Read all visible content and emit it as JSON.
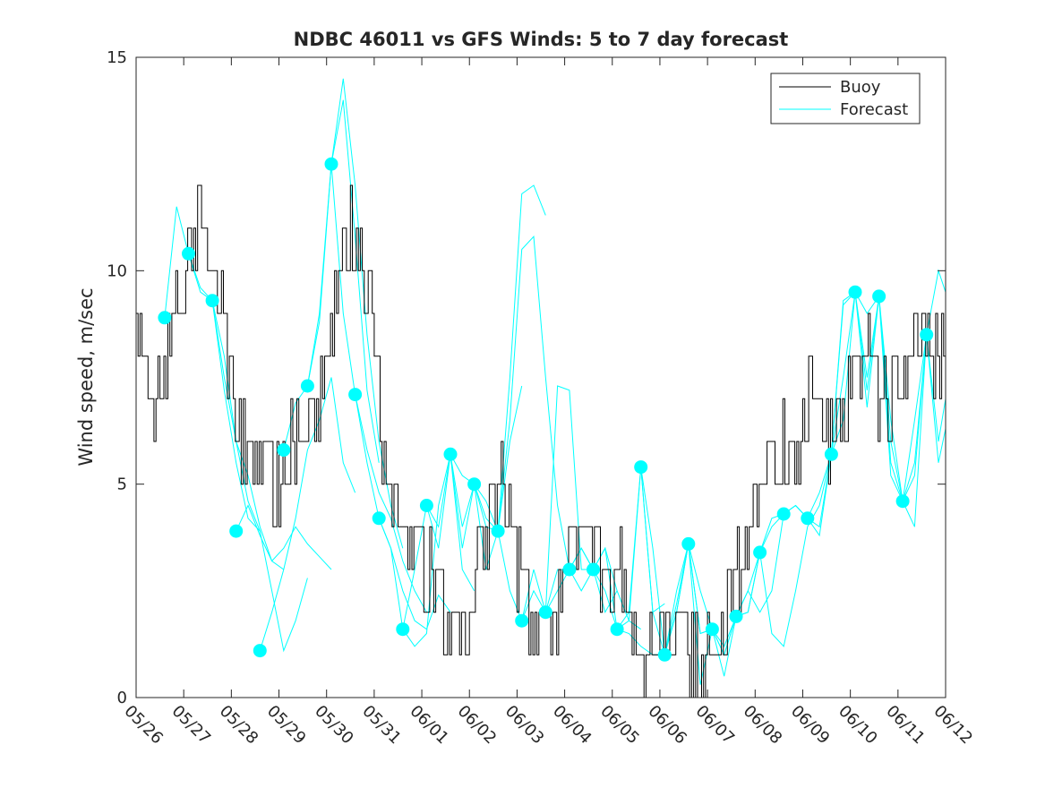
{
  "chart_data": {
    "type": "line",
    "title": "NDBC 46011 vs GFS Winds: 5 to 7 day forecast",
    "xlabel": "",
    "ylabel": "Wind speed, m/sec",
    "x_ticks": [
      "05/26",
      "05/27",
      "05/28",
      "05/29",
      "05/30",
      "05/31",
      "06/01",
      "06/02",
      "06/03",
      "06/04",
      "06/05",
      "06/06",
      "06/07",
      "06/08",
      "06/09",
      "06/10",
      "06/11",
      "06/12"
    ],
    "xlim": [
      0,
      17
    ],
    "ylim": [
      0,
      15
    ],
    "y_ticks": [
      0,
      5,
      10,
      15
    ],
    "grid": false,
    "legend": {
      "placement": "top-right",
      "entries": [
        {
          "name": "Buoy",
          "color": "#000000"
        },
        {
          "name": "Forecast",
          "color": "#00FFFF"
        }
      ]
    },
    "colors": {
      "buoy": "#000000",
      "forecast": "#00FFFF",
      "markers": "#00FFFF"
    },
    "buoy": {
      "name": "Buoy",
      "x": [
        0.0,
        0.25,
        0.5,
        0.75,
        1.0,
        1.25,
        1.5,
        1.75,
        2.0,
        2.25,
        2.5,
        2.75,
        3.0,
        3.25,
        3.5,
        3.75,
        4.0,
        4.25,
        4.5,
        4.75,
        5.0,
        5.25,
        5.5,
        5.75,
        6.0,
        6.25,
        6.5,
        6.75,
        7.0,
        7.25,
        7.5,
        7.75,
        8.0,
        8.25,
        8.5,
        8.75,
        9.0,
        9.25,
        9.5,
        9.75,
        10.0,
        10.25,
        10.5,
        10.75,
        11.0,
        11.25,
        11.5,
        11.75,
        12.0,
        12.25,
        12.5,
        12.75,
        13.0,
        13.25,
        13.5,
        13.75,
        14.0,
        14.25,
        14.5,
        14.75,
        15.0,
        15.25,
        15.5,
        15.75,
        16.0,
        16.25,
        16.5,
        16.75,
        17.0
      ],
      "values": [
        9,
        7,
        6.5,
        9,
        10,
        11,
        10.5,
        9.5,
        7,
        6,
        5,
        5.5,
        5,
        6,
        6.5,
        6.5,
        8,
        10,
        11,
        10,
        9,
        5,
        4,
        4,
        3,
        3,
        1.5,
        1.5,
        2,
        3.5,
        5,
        5,
        3,
        2,
        1.5,
        1.5,
        3,
        4,
        4,
        3,
        3,
        2.5,
        1.5,
        1,
        1.5,
        2,
        1,
        1,
        1,
        2,
        2.5,
        3,
        4.5,
        5.5,
        5.5,
        6,
        6.5,
        7,
        6,
        6.5,
        7.5,
        8,
        7.5,
        7,
        7.5,
        8,
        8.5,
        8,
        8
      ]
    },
    "buoy_spread": 1.0,
    "forecasts": [
      {
        "x": [
          0.6,
          0.85,
          1.1,
          1.35,
          1.6,
          1.85,
          2.1,
          2.35,
          2.6
        ],
        "values": [
          8.9,
          11.5,
          10.4,
          9.6,
          9.3,
          7.2,
          5.5,
          4.2,
          3.9
        ]
      },
      {
        "x": [
          1.1,
          1.35,
          1.6,
          1.85,
          2.1,
          2.35,
          2.6,
          2.85,
          3.1
        ],
        "values": [
          10.4,
          9.5,
          9.3,
          8.0,
          6.0,
          5.2,
          4.0,
          3.2,
          3.0
        ]
      },
      {
        "x": [
          1.6,
          1.85,
          2.1,
          2.35,
          2.6,
          2.85,
          3.1,
          3.35,
          3.6
        ],
        "values": [
          9.3,
          7.5,
          6.0,
          4.6,
          3.9,
          2.5,
          1.1,
          1.8,
          2.8
        ]
      },
      {
        "x": [
          2.1,
          2.35,
          2.6,
          2.85,
          3.1,
          3.35,
          3.6,
          3.85,
          4.1
        ],
        "values": [
          3.9,
          4.5,
          3.8,
          3.2,
          3.5,
          4.0,
          3.6,
          3.3,
          3.0
        ]
      },
      {
        "x": [
          2.6,
          2.85,
          3.1,
          3.35,
          3.6,
          3.85,
          4.1,
          4.35,
          4.6
        ],
        "values": [
          1.1,
          2.0,
          3.0,
          4.2,
          5.8,
          6.5,
          7.5,
          5.5,
          4.8
        ]
      },
      {
        "x": [
          3.1,
          3.35,
          3.6,
          3.85,
          4.1,
          4.35,
          4.6,
          4.85,
          5.1
        ],
        "values": [
          5.8,
          6.9,
          7.3,
          9.0,
          12.5,
          14.0,
          10.8,
          7.2,
          5.5
        ]
      },
      {
        "x": [
          3.6,
          3.85,
          4.1,
          4.35,
          4.6,
          4.85,
          5.1,
          5.35,
          5.6
        ],
        "values": [
          7.3,
          8.8,
          12.5,
          14.5,
          12.0,
          8.5,
          6.0,
          4.5,
          3.5
        ]
      },
      {
        "x": [
          4.1,
          4.35,
          4.6,
          4.85,
          5.1,
          5.35,
          5.6,
          5.85,
          6.1
        ],
        "values": [
          12.5,
          9.0,
          7.1,
          5.8,
          4.8,
          4.2,
          3.2,
          2.5,
          2.0
        ]
      },
      {
        "x": [
          4.6,
          4.85,
          5.1,
          5.35,
          5.6,
          5.85,
          6.1,
          6.35,
          6.6
        ],
        "values": [
          7.1,
          5.5,
          4.2,
          3.5,
          2.5,
          1.8,
          1.6,
          2.4,
          2.0
        ]
      },
      {
        "x": [
          5.1,
          5.35,
          5.6,
          5.85,
          6.1,
          6.35,
          6.6,
          6.85,
          7.1
        ],
        "values": [
          4.2,
          3.5,
          1.6,
          1.2,
          1.5,
          4.5,
          5.7,
          3.0,
          2.5
        ]
      },
      {
        "x": [
          5.6,
          5.85,
          6.1,
          6.35,
          6.6,
          6.85,
          7.1,
          7.35,
          7.6
        ],
        "values": [
          1.6,
          3.0,
          4.5,
          4.0,
          5.7,
          5.2,
          5.0,
          4.0,
          3.9
        ]
      },
      {
        "x": [
          6.1,
          6.35,
          6.6,
          6.85,
          7.1,
          7.35,
          7.6,
          7.85,
          8.1
        ],
        "values": [
          4.5,
          3.5,
          5.7,
          3.5,
          5.0,
          4.2,
          3.9,
          6.0,
          7.3
        ]
      },
      {
        "x": [
          6.6,
          6.85,
          7.1,
          7.35,
          7.6,
          7.85,
          8.1,
          8.35,
          8.6
        ],
        "values": [
          5.7,
          4.0,
          5.0,
          4.6,
          3.9,
          7.5,
          11.8,
          12.0,
          11.3
        ]
      },
      {
        "x": [
          7.1,
          7.35,
          7.6,
          7.85,
          8.1,
          8.35,
          8.6,
          8.85,
          9.1
        ],
        "values": [
          5.0,
          3.0,
          3.9,
          6.5,
          10.5,
          10.8,
          7.5,
          4.5,
          3.0
        ]
      },
      {
        "x": [
          7.6,
          7.85,
          8.1,
          8.35,
          8.6,
          8.85,
          9.1,
          9.35,
          9.6
        ],
        "values": [
          3.9,
          2.5,
          1.8,
          3.0,
          2.0,
          7.3,
          7.2,
          3.0,
          3.0
        ]
      },
      {
        "x": [
          8.1,
          8.35,
          8.6,
          8.85,
          9.1,
          9.35,
          9.6,
          9.85,
          10.1
        ],
        "values": [
          1.8,
          2.5,
          2.0,
          2.5,
          3.0,
          3.5,
          3.0,
          3.5,
          2.5
        ]
      },
      {
        "x": [
          8.6,
          8.85,
          9.1,
          9.35,
          9.6,
          9.85,
          10.1,
          10.35,
          10.6
        ],
        "values": [
          2.0,
          3.0,
          3.0,
          2.5,
          3.0,
          2.0,
          2.5,
          1.8,
          1.6
        ]
      },
      {
        "x": [
          9.1,
          9.35,
          9.6,
          9.85,
          10.1,
          10.35,
          10.6,
          10.85,
          11.1
        ],
        "values": [
          3.0,
          3.5,
          3.0,
          3.5,
          1.6,
          2.0,
          5.4,
          2.0,
          2.2
        ]
      },
      {
        "x": [
          9.6,
          9.85,
          10.1,
          10.35,
          10.6,
          10.85,
          11.1,
          11.35,
          11.6
        ],
        "values": [
          3.0,
          2.5,
          1.6,
          1.5,
          1.2,
          1.0,
          1.0,
          2.0,
          3.6
        ]
      },
      {
        "x": [
          10.1,
          10.35,
          10.6,
          10.85,
          11.1,
          11.35,
          11.6,
          11.85,
          12.1
        ],
        "values": [
          1.6,
          1.8,
          5.4,
          2.0,
          1.0,
          2.5,
          3.6,
          1.5,
          1.6
        ]
      },
      {
        "x": [
          10.6,
          10.85,
          11.1,
          11.35,
          11.6,
          11.85,
          12.1,
          12.35,
          12.6
        ],
        "values": [
          5.4,
          3.5,
          1.0,
          2.2,
          3.6,
          2.5,
          1.6,
          1.0,
          1.9
        ]
      },
      {
        "x": [
          11.1,
          11.35,
          11.6,
          11.85,
          12.1,
          12.35,
          12.6,
          12.85,
          13.1
        ],
        "values": [
          1.0,
          2.0,
          3.6,
          1.5,
          1.6,
          0.5,
          1.9,
          2.0,
          3.4
        ]
      },
      {
        "x": [
          11.6,
          11.85,
          12.1,
          12.35,
          12.6,
          12.85,
          13.1,
          13.35,
          13.6
        ],
        "values": [
          3.6,
          0.3,
          1.6,
          1.2,
          1.9,
          2.5,
          3.4,
          4.2,
          4.3
        ]
      },
      {
        "x": [
          12.1,
          12.35,
          12.6,
          12.85,
          13.1,
          13.35,
          13.6,
          13.85,
          14.1
        ],
        "values": [
          1.6,
          1.0,
          1.9,
          2.5,
          2.0,
          2.5,
          4.3,
          4.5,
          4.2
        ]
      },
      {
        "x": [
          12.6,
          12.85,
          13.1,
          13.35,
          13.6,
          13.85,
          14.1,
          14.35,
          14.6
        ],
        "values": [
          1.9,
          2.0,
          3.4,
          1.5,
          1.2,
          2.5,
          4.0,
          4.5,
          5.7
        ]
      },
      {
        "x": [
          13.1,
          13.35,
          13.6,
          13.85,
          14.1,
          14.35,
          14.6,
          14.85,
          15.1
        ],
        "values": [
          3.4,
          4.0,
          4.3,
          4.5,
          4.2,
          4.8,
          5.7,
          9.2,
          9.5
        ]
      },
      {
        "x": [
          13.6,
          13.85,
          14.1,
          14.35,
          14.6,
          14.85,
          15.1,
          15.35,
          15.6
        ],
        "values": [
          4.3,
          4.5,
          4.2,
          3.8,
          5.7,
          9.3,
          9.5,
          7.2,
          9.4
        ]
      },
      {
        "x": [
          14.1,
          14.35,
          14.6,
          14.85,
          15.1,
          15.35,
          15.6,
          15.85,
          16.1
        ],
        "values": [
          4.2,
          4.0,
          5.7,
          6.5,
          9.5,
          7.5,
          9.4,
          5.2,
          4.6
        ]
      },
      {
        "x": [
          14.6,
          14.85,
          15.1,
          15.35,
          15.6,
          15.85,
          16.1,
          16.35,
          16.6
        ],
        "values": [
          5.7,
          7.5,
          9.5,
          6.8,
          9.4,
          6.0,
          4.6,
          5.5,
          8.5
        ]
      },
      {
        "x": [
          15.1,
          15.35,
          15.6,
          15.85,
          16.1,
          16.35,
          16.6,
          16.85,
          17.0
        ],
        "values": [
          9.5,
          9.0,
          9.4,
          5.5,
          4.6,
          6.5,
          8.5,
          10.0,
          9.5
        ]
      },
      {
        "x": [
          15.6,
          15.85,
          16.1,
          16.35,
          16.6,
          16.85,
          17.0
        ],
        "values": [
          9.4,
          6.5,
          4.6,
          4.0,
          8.5,
          6.0,
          7.0
        ]
      },
      {
        "x": [
          16.1,
          16.35,
          16.6,
          16.85,
          17.0
        ],
        "values": [
          4.6,
          5.2,
          8.5,
          5.5,
          6.3
        ]
      }
    ],
    "markers": {
      "x": [
        0.6,
        1.1,
        1.6,
        2.1,
        2.6,
        3.1,
        3.6,
        4.1,
        4.6,
        5.1,
        5.6,
        6.1,
        6.6,
        7.1,
        7.6,
        8.1,
        8.6,
        9.1,
        9.6,
        10.1,
        10.6,
        11.1,
        11.6,
        12.1,
        12.6,
        13.1,
        13.6,
        14.1,
        14.6,
        15.1,
        15.6,
        16.1,
        16.6
      ],
      "values": [
        8.9,
        10.4,
        9.3,
        3.9,
        1.1,
        5.8,
        7.3,
        12.5,
        7.1,
        4.2,
        1.6,
        4.5,
        5.7,
        5.0,
        3.9,
        1.8,
        2.0,
        3.0,
        3.0,
        1.6,
        5.4,
        1.0,
        3.6,
        1.6,
        1.9,
        3.4,
        4.3,
        4.2,
        5.7,
        9.5,
        9.4,
        4.6,
        8.5
      ]
    }
  }
}
